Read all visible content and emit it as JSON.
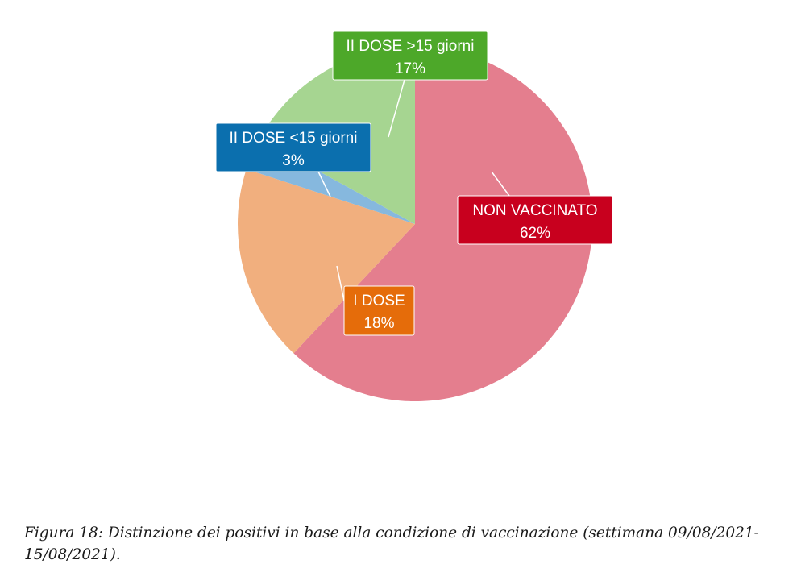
{
  "chart_data": {
    "type": "pie",
    "title": "",
    "categories": [
      "NON VACCINATO",
      "I DOSE",
      "II DOSE <15 giorni",
      "II DOSE >15 giorni"
    ],
    "values": [
      62,
      18,
      3,
      17
    ],
    "value_labels": [
      "62%",
      "18%",
      "3%",
      "17%"
    ],
    "slice_colors": [
      "#E47E8E",
      "#F1AF7E",
      "#86B8DE",
      "#A6D591"
    ],
    "label_colors": [
      "#C8001E",
      "#E56C0A",
      "#0B6FAE",
      "#4DA829"
    ],
    "start_angle_deg": 0,
    "direction": "clockwise",
    "legend": "none",
    "label_style": "callout boxes with leader lines"
  },
  "caption": {
    "text": "Figura 18: Distinzione dei positivi in base alla condizione di vaccinazione (settimana 09/08/2021-15/08/2021)."
  }
}
